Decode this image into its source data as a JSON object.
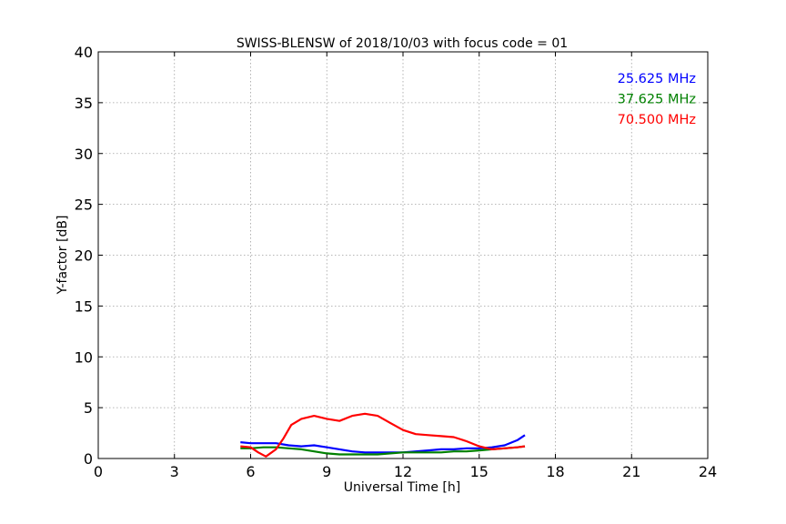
{
  "chart_data": {
    "type": "line",
    "title": "SWISS-BLENSW of 2018/10/03 with focus code = 01",
    "xlabel": "Universal Time [h]",
    "ylabel": "Y-factor [dB]",
    "xlim": [
      0,
      24
    ],
    "ylim": [
      0,
      40
    ],
    "xticks": [
      0,
      3,
      6,
      9,
      12,
      15,
      18,
      21,
      24
    ],
    "yticks": [
      0,
      5,
      10,
      15,
      20,
      25,
      30,
      35,
      40
    ],
    "grid": true,
    "legend_position": "top-right",
    "series": [
      {
        "name": "25.625 MHz",
        "color": "#0000ff",
        "x": [
          5.6,
          6.0,
          6.5,
          7.0,
          7.5,
          8.0,
          8.5,
          9.0,
          9.5,
          10.0,
          10.5,
          11.0,
          11.5,
          12.0,
          12.5,
          13.0,
          13.5,
          14.0,
          14.5,
          15.0,
          15.5,
          16.0,
          16.5,
          16.8
        ],
        "y": [
          1.6,
          1.5,
          1.5,
          1.5,
          1.3,
          1.2,
          1.3,
          1.1,
          0.9,
          0.7,
          0.6,
          0.6,
          0.6,
          0.6,
          0.7,
          0.8,
          0.9,
          0.9,
          1.0,
          1.0,
          1.1,
          1.3,
          1.8,
          2.3
        ]
      },
      {
        "name": "37.625 MHz",
        "color": "#008000",
        "x": [
          5.6,
          6.0,
          6.5,
          7.0,
          7.5,
          8.0,
          8.5,
          9.0,
          9.5,
          10.0,
          10.5,
          11.0,
          11.5,
          12.0,
          12.5,
          13.0,
          13.5,
          14.0,
          14.5,
          15.0,
          15.5,
          16.0,
          16.5,
          16.8
        ],
        "y": [
          1.0,
          1.0,
          1.1,
          1.1,
          1.0,
          0.9,
          0.7,
          0.5,
          0.4,
          0.4,
          0.4,
          0.4,
          0.5,
          0.6,
          0.6,
          0.6,
          0.6,
          0.7,
          0.7,
          0.8,
          0.9,
          1.0,
          1.1,
          1.2
        ]
      },
      {
        "name": "70.500 MHz",
        "color": "#ff0000",
        "x": [
          5.6,
          6.0,
          6.3,
          6.6,
          7.0,
          7.3,
          7.6,
          8.0,
          8.5,
          9.0,
          9.5,
          10.0,
          10.5,
          11.0,
          11.5,
          12.0,
          12.5,
          13.0,
          13.5,
          14.0,
          14.5,
          15.0,
          15.5,
          16.0,
          16.5,
          16.8
        ],
        "y": [
          1.2,
          1.1,
          0.6,
          0.2,
          0.9,
          2.0,
          3.3,
          3.9,
          4.2,
          3.9,
          3.7,
          4.2,
          4.4,
          4.2,
          3.5,
          2.8,
          2.4,
          2.3,
          2.2,
          2.1,
          1.7,
          1.2,
          0.9,
          1.0,
          1.1,
          1.2
        ]
      }
    ]
  }
}
